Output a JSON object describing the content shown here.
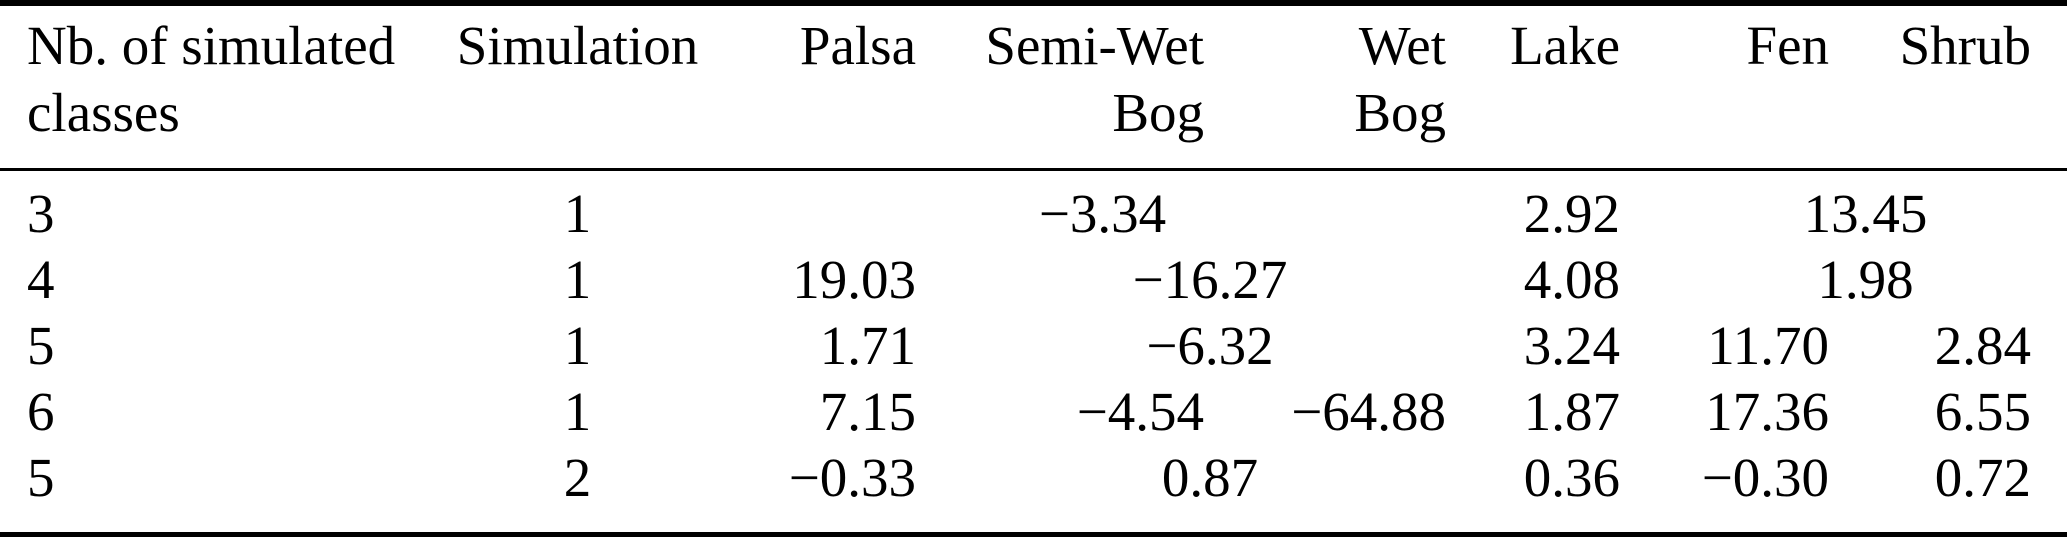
{
  "colors": {
    "text": "#000000",
    "background": "#ffffff",
    "rule": "#000000"
  },
  "table": {
    "columns": [
      {
        "key": "classes",
        "label": "Nb. of simulated classes",
        "label_lines": [
          "Nb. of simulated",
          "classes"
        ],
        "align": "left"
      },
      {
        "key": "simulation",
        "label": "Simulation",
        "label_lines": [
          "Simulation"
        ],
        "align": "center"
      },
      {
        "key": "palsa",
        "label": "Palsa",
        "label_lines": [
          "Palsa"
        ],
        "align": "right"
      },
      {
        "key": "semi-wet-bog",
        "label": "Semi-Wet Bog",
        "label_lines": [
          "Semi-Wet",
          "Bog"
        ],
        "align": "right"
      },
      {
        "key": "wet-bog",
        "label": "Wet Bog",
        "label_lines": [
          "Wet",
          "Bog"
        ],
        "align": "right"
      },
      {
        "key": "lake",
        "label": "Lake",
        "label_lines": [
          "Lake"
        ],
        "align": "right"
      },
      {
        "key": "fen",
        "label": "Fen",
        "label_lines": [
          "Fen"
        ],
        "align": "right"
      },
      {
        "key": "shrub",
        "label": "Shrub",
        "label_lines": [
          "Shrub"
        ],
        "align": "right"
      }
    ],
    "rows": [
      {
        "cells": [
          {
            "text": "3"
          },
          {
            "text": "1"
          },
          {
            "text": "−3.34",
            "colspan": 3,
            "align": "center"
          },
          {
            "text": "2.92"
          },
          {
            "text": "13.45",
            "colspan": 2,
            "align": "center"
          }
        ]
      },
      {
        "cells": [
          {
            "text": "4"
          },
          {
            "text": "1"
          },
          {
            "text": "19.03"
          },
          {
            "text": "−16.27",
            "colspan": 2,
            "align": "center"
          },
          {
            "text": "4.08"
          },
          {
            "text": "1.98",
            "colspan": 2,
            "align": "center"
          }
        ]
      },
      {
        "cells": [
          {
            "text": "5"
          },
          {
            "text": "1"
          },
          {
            "text": "1.71"
          },
          {
            "text": "−6.32",
            "colspan": 2,
            "align": "center"
          },
          {
            "text": "3.24"
          },
          {
            "text": "11.70"
          },
          {
            "text": "2.84"
          }
        ]
      },
      {
        "cells": [
          {
            "text": "6"
          },
          {
            "text": "1"
          },
          {
            "text": "7.15"
          },
          {
            "text": "−4.54"
          },
          {
            "text": "−64.88"
          },
          {
            "text": "1.87"
          },
          {
            "text": "17.36"
          },
          {
            "text": "6.55"
          }
        ]
      },
      {
        "cells": [
          {
            "text": "5"
          },
          {
            "text": "2"
          },
          {
            "text": "−0.33"
          },
          {
            "text": "0.87",
            "colspan": 2,
            "align": "center"
          },
          {
            "text": "0.36"
          },
          {
            "text": "−0.30"
          },
          {
            "text": "0.72"
          }
        ]
      }
    ]
  },
  "chart_data": {
    "type": "table",
    "title": "",
    "columns": [
      "Nb. of simulated classes",
      "Simulation",
      "Palsa",
      "Semi-Wet Bog",
      "Wet Bog",
      "Lake",
      "Fen",
      "Shrub"
    ],
    "rows": [
      {
        "classes": 3,
        "simulation": 1,
        "palsa": null,
        "semi_wet_bog_wet_bog_palsa_merged": -3.34,
        "lake": 2.92,
        "fen_shrub_merged": 13.45
      },
      {
        "classes": 4,
        "simulation": 1,
        "palsa": 19.03,
        "semi_wet_bog_wet_bog_merged": -16.27,
        "lake": 4.08,
        "fen_shrub_merged": 1.98
      },
      {
        "classes": 5,
        "simulation": 1,
        "palsa": 1.71,
        "semi_wet_bog_wet_bog_merged": -6.32,
        "lake": 3.24,
        "fen": 11.7,
        "shrub": 2.84
      },
      {
        "classes": 6,
        "simulation": 1,
        "palsa": 7.15,
        "semi_wet_bog": -4.54,
        "wet_bog": -64.88,
        "lake": 1.87,
        "fen": 17.36,
        "shrub": 6.55
      },
      {
        "classes": 5,
        "simulation": 2,
        "palsa": -0.33,
        "semi_wet_bog_wet_bog_merged": 0.87,
        "lake": 0.36,
        "fen": -0.3,
        "shrub": 0.72
      }
    ]
  }
}
